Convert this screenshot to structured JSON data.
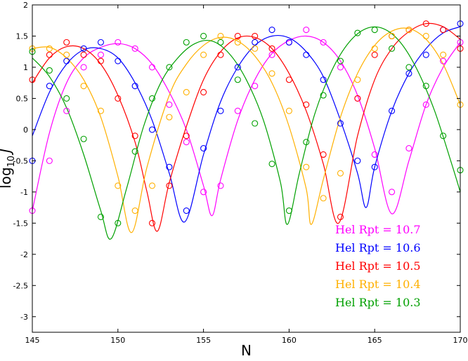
{
  "chart_data": {
    "type": "scatter",
    "xlabel": "N",
    "ylabel_base": "log",
    "ylabel_sub": "10",
    "ylabel_var": "J",
    "xlim": [
      145,
      170
    ],
    "ylim": [
      -3.25,
      2
    ],
    "xticks": [
      "145",
      "150",
      "155",
      "160",
      "165",
      "170"
    ],
    "yticks": [
      "-3",
      "-2.5",
      "-2",
      "-1.5",
      "-1",
      "-0.5",
      "0",
      "0.5",
      "1",
      "1.5",
      "2"
    ],
    "grid": false,
    "legend_position": "bottom-right",
    "series": [
      {
        "name": "Hel Rpt = 10.7",
        "color": "#ff00ff",
        "points": [
          [
            145,
            -1.3
          ],
          [
            146,
            -0.5
          ],
          [
            147,
            0.3
          ],
          [
            148,
            1.0
          ],
          [
            149,
            1.2
          ],
          [
            150,
            1.4
          ],
          [
            151,
            1.3
          ],
          [
            152,
            1.0
          ],
          [
            153,
            0.4
          ],
          [
            154,
            -0.2
          ],
          [
            155,
            -1.0
          ],
          [
            156,
            -0.9
          ],
          [
            157,
            0.3
          ],
          [
            158,
            0.7
          ],
          [
            159,
            1.2
          ],
          [
            160,
            1.4
          ],
          [
            161,
            1.6
          ],
          [
            162,
            1.4
          ],
          [
            163,
            1.0
          ],
          [
            164,
            0.5
          ],
          [
            165,
            -0.4
          ],
          [
            166,
            -1.0
          ],
          [
            167,
            -0.3
          ],
          [
            168,
            0.4
          ],
          [
            169,
            1.1
          ],
          [
            170,
            1.4
          ]
        ],
        "curve": [
          [
            145,
            -1.3
          ],
          [
            146,
            -0.05
          ],
          [
            147,
            0.75
          ],
          [
            148,
            1.15
          ],
          [
            149,
            1.32
          ],
          [
            150,
            1.38
          ],
          [
            151,
            1.3
          ],
          [
            152,
            1.05
          ],
          [
            153,
            0.6
          ],
          [
            154,
            0.0
          ],
          [
            155,
            -0.9
          ],
          [
            155.5,
            -1.38
          ],
          [
            156,
            -0.8
          ],
          [
            157,
            0.15
          ],
          [
            158,
            0.8
          ],
          [
            159,
            1.22
          ],
          [
            160,
            1.43
          ],
          [
            161,
            1.5
          ],
          [
            162,
            1.4
          ],
          [
            163,
            1.1
          ],
          [
            164,
            0.55
          ],
          [
            165,
            -0.3
          ],
          [
            166,
            -1.35
          ],
          [
            167,
            -0.5
          ],
          [
            168,
            0.4
          ],
          [
            169,
            1.0
          ],
          [
            170,
            1.4
          ]
        ]
      },
      {
        "name": "Hel Rpt = 10.6",
        "color": "#0000ff",
        "points": [
          [
            145,
            -0.5
          ],
          [
            146,
            0.7
          ],
          [
            147,
            1.1
          ],
          [
            148,
            1.3
          ],
          [
            149,
            1.4
          ],
          [
            150,
            1.1
          ],
          [
            151,
            0.7
          ],
          [
            152,
            0.0
          ],
          [
            153,
            -0.6
          ],
          [
            154,
            -1.3
          ],
          [
            155,
            -0.3
          ],
          [
            156,
            0.3
          ],
          [
            157,
            1.0
          ],
          [
            158,
            1.4
          ],
          [
            159,
            1.6
          ],
          [
            160,
            1.4
          ],
          [
            161,
            1.2
          ],
          [
            162,
            0.8
          ],
          [
            163,
            0.1
          ],
          [
            164,
            -0.5
          ],
          [
            165,
            -0.6
          ],
          [
            166,
            0.3
          ],
          [
            167,
            0.9
          ],
          [
            168,
            1.2
          ],
          [
            169,
            1.6
          ],
          [
            170,
            1.7
          ]
        ],
        "curve": [
          [
            145,
            -0.1
          ],
          [
            146,
            0.6
          ],
          [
            147,
            1.05
          ],
          [
            148,
            1.28
          ],
          [
            149,
            1.3
          ],
          [
            150,
            1.15
          ],
          [
            151,
            0.75
          ],
          [
            152,
            0.15
          ],
          [
            153,
            -0.7
          ],
          [
            153.9,
            -1.48
          ],
          [
            155,
            -0.4
          ],
          [
            156,
            0.45
          ],
          [
            157,
            1.0
          ],
          [
            158,
            1.35
          ],
          [
            159,
            1.5
          ],
          [
            160,
            1.47
          ],
          [
            161,
            1.25
          ],
          [
            162,
            0.85
          ],
          [
            163,
            0.15
          ],
          [
            164,
            -0.7
          ],
          [
            164.5,
            -1.25
          ],
          [
            165,
            -0.6
          ],
          [
            166,
            0.3
          ],
          [
            167,
            0.9
          ],
          [
            168,
            1.3
          ],
          [
            169,
            1.55
          ],
          [
            170,
            1.65
          ]
        ]
      },
      {
        "name": "Hel Rpt = 10.5",
        "color": "#ff0000",
        "points": [
          [
            145,
            0.8
          ],
          [
            146,
            1.2
          ],
          [
            147,
            1.4
          ],
          [
            148,
            1.2
          ],
          [
            149,
            1.1
          ],
          [
            150,
            0.5
          ],
          [
            151,
            -0.1
          ],
          [
            152,
            -1.5
          ],
          [
            153,
            -0.9
          ],
          [
            154,
            -0.1
          ],
          [
            155,
            0.6
          ],
          [
            156,
            1.2
          ],
          [
            157,
            1.5
          ],
          [
            158,
            1.5
          ],
          [
            159,
            1.3
          ],
          [
            160,
            0.8
          ],
          [
            161,
            0.4
          ],
          [
            162,
            -0.4
          ],
          [
            163,
            -1.4
          ],
          [
            164,
            0.5
          ],
          [
            165,
            1.2
          ],
          [
            166,
            1.5
          ],
          [
            167,
            1.6
          ],
          [
            168,
            1.7
          ],
          [
            169,
            1.6
          ],
          [
            170,
            1.3
          ]
        ],
        "curve": [
          [
            145,
            0.75
          ],
          [
            146,
            1.15
          ],
          [
            147,
            1.33
          ],
          [
            148,
            1.3
          ],
          [
            149,
            1.05
          ],
          [
            150,
            0.55
          ],
          [
            151,
            -0.2
          ],
          [
            151.7,
            -1.0
          ],
          [
            152.3,
            -1.63
          ],
          [
            153,
            -0.85
          ],
          [
            154,
            0.05
          ],
          [
            155,
            0.8
          ],
          [
            156,
            1.25
          ],
          [
            157,
            1.47
          ],
          [
            158,
            1.48
          ],
          [
            159,
            1.3
          ],
          [
            160,
            0.9
          ],
          [
            161,
            0.3
          ],
          [
            162,
            -0.55
          ],
          [
            162.9,
            -1.5
          ],
          [
            164,
            -0.1
          ],
          [
            165,
            0.8
          ],
          [
            166,
            1.3
          ],
          [
            167,
            1.57
          ],
          [
            168,
            1.7
          ],
          [
            169,
            1.65
          ],
          [
            170,
            1.45
          ]
        ]
      },
      {
        "name": "Hel Rpt = 10.4",
        "color": "#ffb000",
        "points": [
          [
            145,
            1.3
          ],
          [
            146,
            1.3
          ],
          [
            147,
            1.2
          ],
          [
            148,
            0.7
          ],
          [
            149,
            0.3
          ],
          [
            150,
            -0.9
          ],
          [
            151,
            -1.3
          ],
          [
            152,
            -0.9
          ],
          [
            153,
            0.2
          ],
          [
            154,
            0.6
          ],
          [
            155,
            1.2
          ],
          [
            156,
            1.5
          ],
          [
            157,
            1.4
          ],
          [
            158,
            1.3
          ],
          [
            159,
            0.9
          ],
          [
            160,
            0.3
          ],
          [
            161,
            -0.6
          ],
          [
            162,
            -1.1
          ],
          [
            163,
            -0.7
          ],
          [
            164,
            0.8
          ],
          [
            165,
            1.3
          ],
          [
            166,
            1.5
          ],
          [
            167,
            1.6
          ],
          [
            168,
            1.5
          ],
          [
            169,
            1.2
          ],
          [
            170,
            0.4
          ]
        ],
        "curve": [
          [
            145,
            1.3
          ],
          [
            146,
            1.32
          ],
          [
            147,
            1.15
          ],
          [
            148,
            0.8
          ],
          [
            149,
            0.2
          ],
          [
            150,
            -0.75
          ],
          [
            150.8,
            -1.65
          ],
          [
            151.7,
            -0.6
          ],
          [
            153,
            0.55
          ],
          [
            154,
            1.05
          ],
          [
            155,
            1.35
          ],
          [
            156,
            1.48
          ],
          [
            157,
            1.42
          ],
          [
            158,
            1.18
          ],
          [
            159,
            0.75
          ],
          [
            160,
            0.05
          ],
          [
            161,
            -0.95
          ],
          [
            161.3,
            -1.52
          ],
          [
            162,
            -0.8
          ],
          [
            163,
            0.2
          ],
          [
            164,
            0.9
          ],
          [
            165,
            1.35
          ],
          [
            166,
            1.58
          ],
          [
            167,
            1.62
          ],
          [
            168,
            1.45
          ],
          [
            169,
            1.05
          ],
          [
            170,
            0.4
          ]
        ]
      },
      {
        "name": "Hel Rpt = 10.3",
        "color": "#00a000",
        "points": [
          [
            145,
            1.25
          ],
          [
            146,
            0.95
          ],
          [
            147,
            0.5
          ],
          [
            148,
            -0.15
          ],
          [
            149,
            -1.4
          ],
          [
            150,
            -1.5
          ],
          [
            151,
            -0.35
          ],
          [
            152,
            0.5
          ],
          [
            153,
            1.0
          ],
          [
            154,
            1.4
          ],
          [
            155,
            1.5
          ],
          [
            156,
            1.4
          ],
          [
            157,
            0.8
          ],
          [
            158,
            0.1
          ],
          [
            159,
            -0.55
          ],
          [
            160,
            -1.3
          ],
          [
            161,
            -0.2
          ],
          [
            162,
            0.55
          ],
          [
            163,
            1.1
          ],
          [
            164,
            1.55
          ],
          [
            165,
            1.6
          ],
          [
            166,
            1.3
          ],
          [
            167,
            1.0
          ],
          [
            168,
            0.7
          ],
          [
            169,
            -0.1
          ],
          [
            170,
            -0.65
          ]
        ],
        "curve": [
          [
            145,
            1.15
          ],
          [
            146,
            0.85
          ],
          [
            147,
            0.35
          ],
          [
            148,
            -0.4
          ],
          [
            149,
            -1.3
          ],
          [
            149.6,
            -1.75
          ],
          [
            150.5,
            -0.95
          ],
          [
            151.5,
            0.05
          ],
          [
            152.5,
            0.75
          ],
          [
            153.5,
            1.15
          ],
          [
            154.5,
            1.38
          ],
          [
            155.5,
            1.42
          ],
          [
            156.5,
            1.22
          ],
          [
            157.5,
            0.8
          ],
          [
            158.5,
            0.15
          ],
          [
            159.5,
            -0.85
          ],
          [
            159.9,
            -1.52
          ],
          [
            160.6,
            -0.7
          ],
          [
            161.5,
            0.25
          ],
          [
            162.5,
            0.95
          ],
          [
            163.5,
            1.4
          ],
          [
            164.5,
            1.62
          ],
          [
            165.5,
            1.62
          ],
          [
            166.5,
            1.4
          ],
          [
            167.5,
            0.95
          ],
          [
            168.5,
            0.3
          ],
          [
            169.5,
            -0.55
          ],
          [
            170,
            -1.0
          ]
        ]
      }
    ]
  }
}
